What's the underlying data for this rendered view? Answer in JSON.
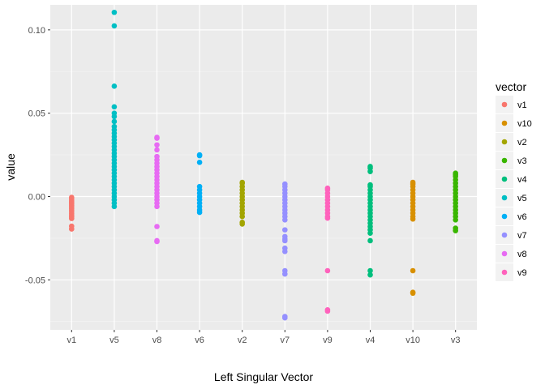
{
  "chart_data": {
    "type": "scatter",
    "title": "",
    "xlabel": "Left Singular Vector",
    "ylabel": "value",
    "x_categories": [
      "v1",
      "v5",
      "v8",
      "v6",
      "v2",
      "v7",
      "v9",
      "v4",
      "v10",
      "v3"
    ],
    "ylim": [
      -0.08,
      0.115
    ],
    "y_ticks": [
      -0.05,
      0.0,
      0.05,
      0.1
    ],
    "y_tick_labels": [
      "-0.05",
      "0.00",
      "0.05",
      "0.10"
    ],
    "grid": true,
    "panel_background": "#ebebeb",
    "legend": {
      "title": "vector",
      "position": "right",
      "entries": [
        {
          "label": "v1",
          "color": "#f8766d"
        },
        {
          "label": "v10",
          "color": "#d89000"
        },
        {
          "label": "v2",
          "color": "#a3a500"
        },
        {
          "label": "v3",
          "color": "#39b600"
        },
        {
          "label": "v4",
          "color": "#00bf7d"
        },
        {
          "label": "v5",
          "color": "#00bfc4"
        },
        {
          "label": "v6",
          "color": "#00b0f6"
        },
        {
          "label": "v7",
          "color": "#9590ff"
        },
        {
          "label": "v8",
          "color": "#e76bf3"
        },
        {
          "label": "v9",
          "color": "#ff62bc"
        }
      ]
    },
    "series": [
      {
        "name": "v1",
        "color": "#f8766d",
        "points": [
          -0.0132,
          -0.0122,
          -0.0112,
          -0.0102,
          -0.0092,
          -0.0082,
          -0.0072,
          -0.0062,
          -0.0052,
          -0.0042,
          -0.0032,
          -0.0022,
          -0.0012,
          -0.0005,
          -0.0178,
          -0.0195
        ]
      },
      {
        "name": "v5",
        "color": "#00bfc4",
        "points": [
          0.1105,
          0.1024,
          0.0662,
          0.0538,
          0.05,
          0.048,
          0.045,
          0.042,
          0.04,
          0.038,
          0.036,
          0.034,
          0.032,
          0.03,
          0.028,
          0.026,
          0.024,
          0.022,
          0.02,
          0.018,
          0.016,
          0.014,
          0.012,
          0.01,
          0.008,
          0.006,
          0.004,
          0.002,
          0.0,
          -0.002,
          -0.004,
          -0.006
        ]
      },
      {
        "name": "v8",
        "color": "#e76bf3",
        "points": [
          0.0355,
          0.035,
          0.031,
          0.028,
          0.024,
          0.022,
          0.02,
          0.018,
          0.016,
          0.014,
          0.012,
          0.01,
          0.008,
          0.006,
          0.004,
          0.002,
          0.0,
          -0.002,
          -0.004,
          -0.006,
          -0.018,
          -0.0265,
          -0.027
        ]
      },
      {
        "name": "v6",
        "color": "#00b0f6",
        "points": [
          0.025,
          0.0245,
          0.0205,
          0.006,
          0.004,
          0.002,
          0.0,
          -0.002,
          -0.004,
          -0.006,
          -0.008,
          -0.0095
        ]
      },
      {
        "name": "v2",
        "color": "#a3a500",
        "points": [
          0.0085,
          0.008,
          0.006,
          0.004,
          0.002,
          0.0,
          -0.002,
          -0.004,
          -0.006,
          -0.008,
          -0.01,
          -0.012,
          -0.0155,
          -0.0165
        ]
      },
      {
        "name": "v7",
        "color": "#9590ff",
        "points": [
          0.0075,
          0.006,
          0.004,
          0.002,
          0.0,
          -0.002,
          -0.004,
          -0.006,
          -0.008,
          -0.01,
          -0.012,
          -0.014,
          -0.02,
          -0.024,
          -0.0255,
          -0.0265,
          -0.031,
          -0.033,
          -0.0445,
          -0.0465,
          -0.072,
          -0.0728
        ]
      },
      {
        "name": "v9",
        "color": "#ff62bc",
        "points": [
          0.005,
          0.004,
          0.002,
          0.0,
          -0.002,
          -0.004,
          -0.006,
          -0.008,
          -0.01,
          -0.012,
          -0.013,
          -0.0445,
          -0.068,
          -0.0688
        ]
      },
      {
        "name": "v4",
        "color": "#00bf7d",
        "points": [
          0.018,
          0.017,
          0.015,
          0.007,
          0.006,
          0.004,
          0.002,
          0.0,
          -0.002,
          -0.004,
          -0.006,
          -0.008,
          -0.01,
          -0.012,
          -0.014,
          -0.016,
          -0.018,
          -0.02,
          -0.022,
          -0.0265,
          -0.0445,
          -0.047
        ]
      },
      {
        "name": "v10",
        "color": "#d89000",
        "points": [
          0.0085,
          0.0075,
          0.006,
          0.004,
          0.002,
          0.0,
          -0.002,
          -0.004,
          -0.006,
          -0.008,
          -0.01,
          -0.012,
          -0.0135,
          -0.0445,
          -0.0575,
          -0.058
        ]
      },
      {
        "name": "v3",
        "color": "#39b600",
        "points": [
          0.014,
          0.013,
          0.012,
          0.01,
          0.008,
          0.006,
          0.004,
          0.002,
          0.0,
          -0.002,
          -0.004,
          -0.006,
          -0.008,
          -0.01,
          -0.012,
          -0.014,
          -0.019,
          -0.0205
        ]
      }
    ]
  }
}
